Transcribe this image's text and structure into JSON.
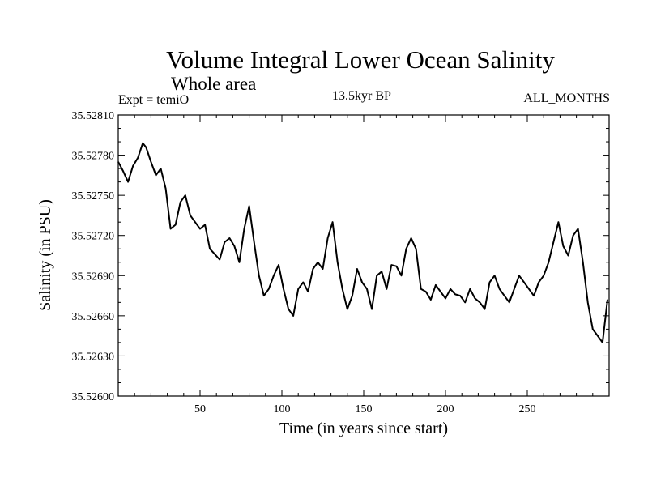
{
  "chart_data": {
    "type": "line",
    "title": "Volume Integral Lower Ocean Salinity",
    "subtitle": "Whole area",
    "experiment_label": "Expt = temiO",
    "period_label": "13.5kyr BP",
    "months_label": "ALL_MONTHS",
    "xlabel": "Time (in years since start)",
    "ylabel": "Salinity (in PSU)",
    "xlim": [
      0,
      300
    ],
    "ylim": [
      35.526,
      35.5281
    ],
    "x_ticks": [
      50,
      100,
      150,
      200,
      250
    ],
    "x_tick_labels": [
      "50",
      "100",
      "150",
      "200",
      "250"
    ],
    "y_ticks": [
      35.526,
      35.5263,
      35.5266,
      35.5269,
      35.5272,
      35.5275,
      35.5278,
      35.5281
    ],
    "y_tick_labels": [
      "35.52600",
      "35.52630",
      "35.52660",
      "35.52690",
      "35.52720",
      "35.52750",
      "35.52780",
      "35.52810"
    ],
    "grid": false,
    "series": [
      {
        "name": "Salinity",
        "color": "#000000",
        "x": [
          0,
          3,
          6,
          9,
          12,
          15,
          17,
          20,
          23,
          26,
          29,
          32,
          35,
          38,
          41,
          44,
          47,
          50,
          53,
          56,
          59,
          62,
          65,
          68,
          71,
          74,
          77,
          80,
          83,
          86,
          89,
          92,
          95,
          98,
          101,
          104,
          107,
          110,
          113,
          116,
          119,
          122,
          125,
          128,
          131,
          134,
          137,
          140,
          143,
          146,
          149,
          152,
          155,
          158,
          161,
          164,
          167,
          170,
          173,
          176,
          179,
          182,
          185,
          188,
          191,
          194,
          197,
          200,
          203,
          206,
          209,
          212,
          215,
          218,
          221,
          224,
          227,
          230,
          233,
          236,
          239,
          242,
          245,
          248,
          251,
          254,
          257,
          260,
          263,
          266,
          269,
          272,
          275,
          278,
          281,
          284,
          287,
          290,
          293,
          296,
          299
        ],
        "y": [
          35.52775,
          35.52768,
          35.5276,
          35.52772,
          35.52778,
          35.52789,
          35.52786,
          35.52775,
          35.52765,
          35.5277,
          35.52755,
          35.52725,
          35.52728,
          35.52745,
          35.5275,
          35.52735,
          35.5273,
          35.52725,
          35.52728,
          35.5271,
          35.52706,
          35.52702,
          35.52715,
          35.52718,
          35.52712,
          35.527,
          35.52725,
          35.52742,
          35.52715,
          35.5269,
          35.52675,
          35.5268,
          35.5269,
          35.52698,
          35.5268,
          35.52665,
          35.5266,
          35.5268,
          35.52685,
          35.52678,
          35.52695,
          35.527,
          35.52695,
          35.52718,
          35.5273,
          35.527,
          35.5268,
          35.52665,
          35.52675,
          35.52695,
          35.52685,
          35.5268,
          35.52665,
          35.5269,
          35.52693,
          35.5268,
          35.52698,
          35.52697,
          35.5269,
          35.5271,
          35.52718,
          35.5271,
          35.5268,
          35.52678,
          35.52672,
          35.52683,
          35.52678,
          35.52673,
          35.5268,
          35.52676,
          35.52675,
          35.5267,
          35.5268,
          35.52673,
          35.5267,
          35.52665,
          35.52685,
          35.5269,
          35.5268,
          35.52675,
          35.5267,
          35.5268,
          35.5269,
          35.52685,
          35.5268,
          35.52675,
          35.52685,
          35.5269,
          35.527,
          35.52715,
          35.5273,
          35.52712,
          35.52705,
          35.5272,
          35.52725,
          35.527,
          35.5267,
          35.5265,
          35.52645,
          35.5264,
          35.52672
        ]
      }
    ]
  }
}
